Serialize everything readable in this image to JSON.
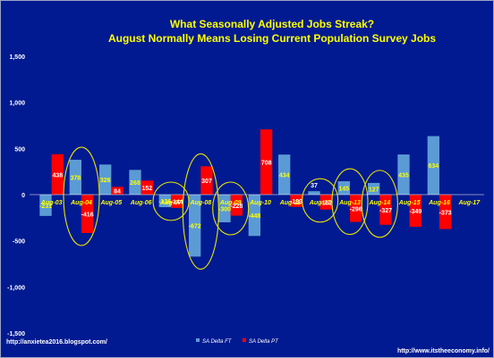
{
  "chart_data": {
    "type": "bar",
    "title": "What Seasonally Adjusted Jobs Streak?",
    "subtitle": "August Normally Means Losing Current Population Survey Jobs",
    "categories": [
      "Aug-03",
      "Aug-04",
      "Aug-05",
      "Aug-06",
      "Aug-07",
      "Aug-08",
      "Aug-09",
      "Aug-10",
      "Aug-11",
      "Aug-12",
      "Aug-13",
      "Aug-14",
      "Aug-15",
      "Aug-16",
      "Aug-17"
    ],
    "series": [
      {
        "name": "SA Delta FT",
        "color": "#5b9bd5",
        "values": [
          -231,
          378,
          326,
          268,
          -136,
          -672,
          -300,
          -448,
          434,
          37,
          145,
          127,
          435,
          634,
          null
        ],
        "labels": [
          "-231",
          "378",
          "326",
          "268",
          "-136",
          "-672",
          "-300",
          "-448",
          "434",
          "37",
          "145",
          "127",
          "435",
          "634",
          ""
        ]
      },
      {
        "name": "SA Delta PT",
        "color": "#ff0000",
        "values": [
          438,
          -416,
          84,
          152,
          -144,
          307,
          -228,
          708,
          -133,
          -162,
          -296,
          -327,
          -349,
          -373,
          null
        ],
        "labels": [
          "438",
          "-416",
          "84",
          "152",
          "-144",
          "307",
          "-228",
          "708",
          "-133",
          "-162",
          "-296",
          "-327",
          "-349",
          "-373",
          ""
        ]
      }
    ],
    "ylim": [
      -1500,
      1500
    ],
    "yticks": [
      -1500,
      -1000,
      -500,
      0,
      500,
      1000,
      1500
    ],
    "ytick_labels": [
      "-1,500",
      "-1,000",
      "-500",
      "0",
      "500",
      "1,000",
      "1,500"
    ],
    "circled_categories": [
      "Aug-04",
      "Aug-07",
      "Aug-08",
      "Aug-09",
      "Aug-12",
      "Aug-13",
      "Aug-14"
    ],
    "legend_position": "bottom-center",
    "grid": false
  },
  "footer": {
    "left_url": "http://anxietea2016.blogspot.com/",
    "right_url": "http://www.itstheeconomy.info/"
  },
  "colors": {
    "background": "#021a91",
    "title": "#ffff00",
    "axis_text": "#ffffff",
    "category_label": "#ffff00",
    "circle": "#e6e600"
  }
}
